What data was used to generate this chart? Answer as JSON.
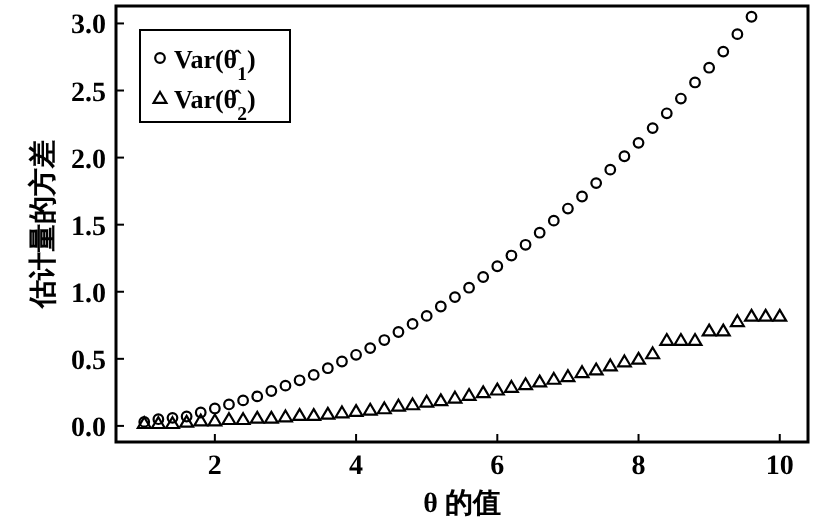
{
  "chart_data": {
    "type": "scatter",
    "xlabel": "θ 的值",
    "ylabel": "估计量的方差",
    "xlim": [
      0.6,
      10.4
    ],
    "ylim": [
      -0.12,
      3.13
    ],
    "xticks": [
      2,
      4,
      6,
      8,
      10
    ],
    "yticks": [
      {
        "value": 0,
        "label": "0.0"
      },
      {
        "value": 0.5,
        "label": "0.5"
      },
      {
        "value": 1,
        "label": "1.0"
      },
      {
        "value": 1.5,
        "label": "1.5"
      },
      {
        "value": 2,
        "label": "2.0"
      },
      {
        "value": 2.5,
        "label": "2.5"
      },
      {
        "value": 3,
        "label": "3.0"
      }
    ],
    "grid": false,
    "legend": "top left",
    "series": [
      {
        "name": "Var(θ̂$_{1}$)",
        "color": "#000000",
        "marker": "circle",
        "x": [
          1.0,
          1.2,
          1.4,
          1.6,
          1.8,
          2.0,
          2.2,
          2.4,
          2.6,
          2.8,
          3.0,
          3.2,
          3.4,
          3.6,
          3.8,
          4.0,
          4.2,
          4.4,
          4.6,
          4.8,
          5.0,
          5.2,
          5.4,
          5.6,
          5.8,
          6.0,
          6.2,
          6.4,
          6.6,
          6.8,
          7.0,
          7.2,
          7.4,
          7.6,
          7.8,
          8.0,
          8.2,
          8.4,
          8.6,
          8.8,
          9.0,
          9.2,
          9.4,
          9.6
        ],
        "values": [
          0.03,
          0.05,
          0.06,
          0.07,
          0.1,
          0.13,
          0.16,
          0.19,
          0.22,
          0.26,
          0.3,
          0.34,
          0.38,
          0.43,
          0.48,
          0.53,
          0.58,
          0.64,
          0.7,
          0.76,
          0.82,
          0.89,
          0.96,
          1.03,
          1.11,
          1.19,
          1.27,
          1.35,
          1.44,
          1.53,
          1.62,
          1.71,
          1.81,
          1.91,
          2.01,
          2.11,
          2.22,
          2.33,
          2.44,
          2.56,
          2.67,
          2.79,
          2.92,
          3.05
        ]
      },
      {
        "name": "Var(θ̂$_{2}$)",
        "color": "#000000",
        "marker": "triangle",
        "x": [
          1.0,
          1.2,
          1.4,
          1.6,
          1.8,
          2.0,
          2.2,
          2.4,
          2.6,
          2.8,
          3.0,
          3.2,
          3.4,
          3.6,
          3.8,
          4.0,
          4.2,
          4.4,
          4.6,
          4.8,
          5.0,
          5.2,
          5.4,
          5.6,
          5.8,
          6.0,
          6.2,
          6.4,
          6.6,
          6.8,
          7.0,
          7.2,
          7.4,
          7.6,
          7.8,
          8.0,
          8.2,
          8.4,
          8.6,
          8.8,
          9.0,
          9.2,
          9.4,
          9.6,
          9.8,
          10.0
        ],
        "values": [
          0.02,
          0.02,
          0.02,
          0.03,
          0.04,
          0.04,
          0.05,
          0.05,
          0.06,
          0.06,
          0.07,
          0.08,
          0.08,
          0.09,
          0.1,
          0.11,
          0.12,
          0.13,
          0.15,
          0.16,
          0.18,
          0.19,
          0.21,
          0.23,
          0.25,
          0.27,
          0.29,
          0.31,
          0.33,
          0.35,
          0.37,
          0.4,
          0.42,
          0.45,
          0.48,
          0.5,
          0.54,
          0.64,
          0.64,
          0.64,
          0.71,
          0.71,
          0.78,
          0.82,
          0.82,
          0.82
        ]
      }
    ]
  }
}
